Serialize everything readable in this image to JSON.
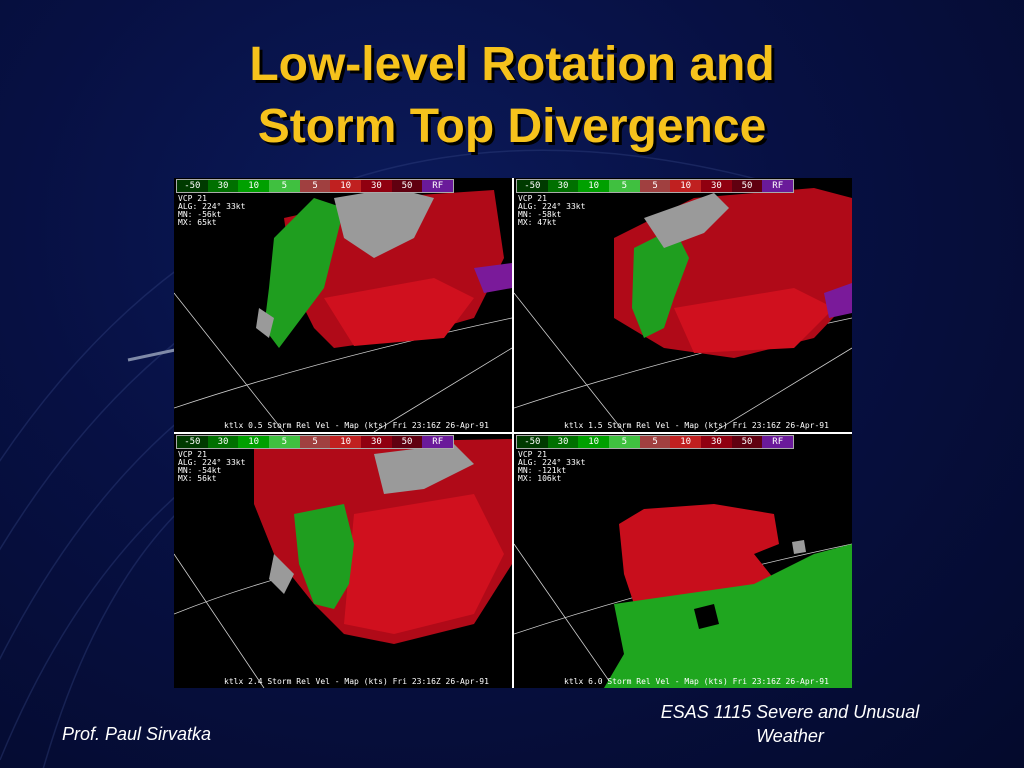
{
  "slide": {
    "title_line1": "Low-level Rotation and",
    "title_line2": "Storm Top Divergence",
    "footer_left": "Prof. Paul Sirvatka",
    "footer_right_line1": "ESAS 1115 Severe and Unusual",
    "footer_right_line2": "Weather"
  },
  "colors": {
    "title": "#f6c21c",
    "inbound_green": "#1fa61f",
    "outbound_red": "#c0101c",
    "range_folded": "#a0a0a0",
    "background": "#071043"
  },
  "scale_labels": [
    "-50",
    "30",
    "10",
    "5",
    "5",
    "10",
    "30",
    "50",
    "RF"
  ],
  "panels": [
    {
      "vcp": "VCP 21",
      "alg": "ALG: 224° 33kt",
      "mn": "MN: -56kt",
      "mx": "MX: 65kt",
      "caption": "ktlx 0.5 Storm Rel Vel - Map (kts) Fri 23:16Z 26-Apr-91"
    },
    {
      "vcp": "VCP 21",
      "alg": "ALG: 224° 33kt",
      "mn": "MN: -58kt",
      "mx": "MX: 47kt",
      "caption": "ktlx 1.5 Storm Rel Vel - Map (kts) Fri 23:16Z 26-Apr-91"
    },
    {
      "vcp": "VCP 21",
      "alg": "ALG: 224° 33kt",
      "mn": "MN: -54kt",
      "mx": "MX: 56kt",
      "caption": "ktlx 2.4 Storm Rel Vel - Map (kts) Fri 23:16Z 26-Apr-91"
    },
    {
      "vcp": "VCP 21",
      "alg": "ALG: 224° 33kt",
      "mn": "MN: -121kt",
      "mx": "MX: 106kt",
      "caption": "ktlx 6.0 Storm Rel Vel - Map (kts) Fri 23:16Z 26-Apr-91"
    }
  ]
}
